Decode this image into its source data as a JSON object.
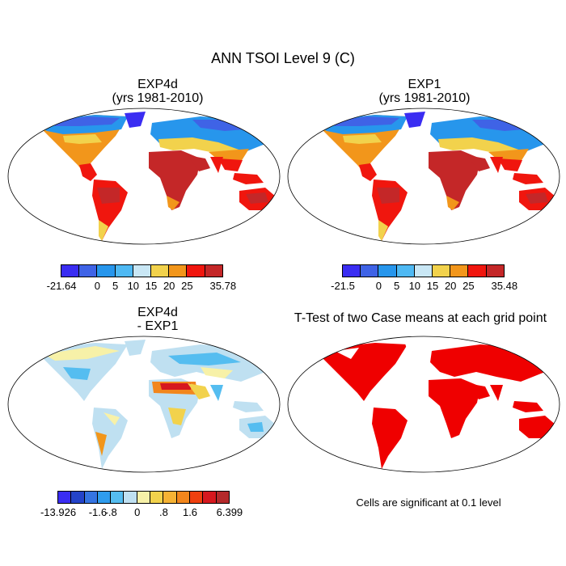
{
  "main_title": "ANN TSOI Level 9 (C)",
  "panels": [
    {
      "title1": "EXP4d",
      "title2": "(yrs 1981-2010)"
    },
    {
      "title1": "EXP1",
      "title2": "(yrs 1981-2010)"
    },
    {
      "title1": "EXP4d",
      "title2": "- EXP1"
    },
    {
      "title1": "T-Test of two Case means at each grid point",
      "title2": ""
    }
  ],
  "colorbars": [
    {
      "colors": [
        "#3a2df2",
        "#3f63e6",
        "#2796ec",
        "#4fb9f3",
        "#c9e7f5",
        "#f2d24c",
        "#f2961b",
        "#f0160e",
        "#c42728"
      ],
      "labels": [
        "-21.64",
        "0",
        "5",
        "10",
        "15",
        "20",
        "25",
        "35.78"
      ]
    },
    {
      "colors": [
        "#3a2df2",
        "#3f63e6",
        "#2796ec",
        "#4fb9f3",
        "#c9e7f5",
        "#f2d24c",
        "#f2961b",
        "#f0160e",
        "#c42728"
      ],
      "labels": [
        "-21.5",
        "0",
        "5",
        "10",
        "15",
        "20",
        "25",
        "35.48"
      ]
    },
    {
      "colors": [
        "#3a2df2",
        "#2443c9",
        "#3574e2",
        "#2f9ced",
        "#55bdf0",
        "#bfe0f1",
        "#f7f1a8",
        "#f2d24c",
        "#f5b234",
        "#f2861c",
        "#f0400f",
        "#d6181e",
        "#b42a2b"
      ],
      "labels": [
        "-13.926",
        "-1.6",
        "-.8",
        "0",
        ".8",
        "1.6",
        "6.399"
      ]
    }
  ],
  "note": "Cells are significant at 0.1 level"
}
